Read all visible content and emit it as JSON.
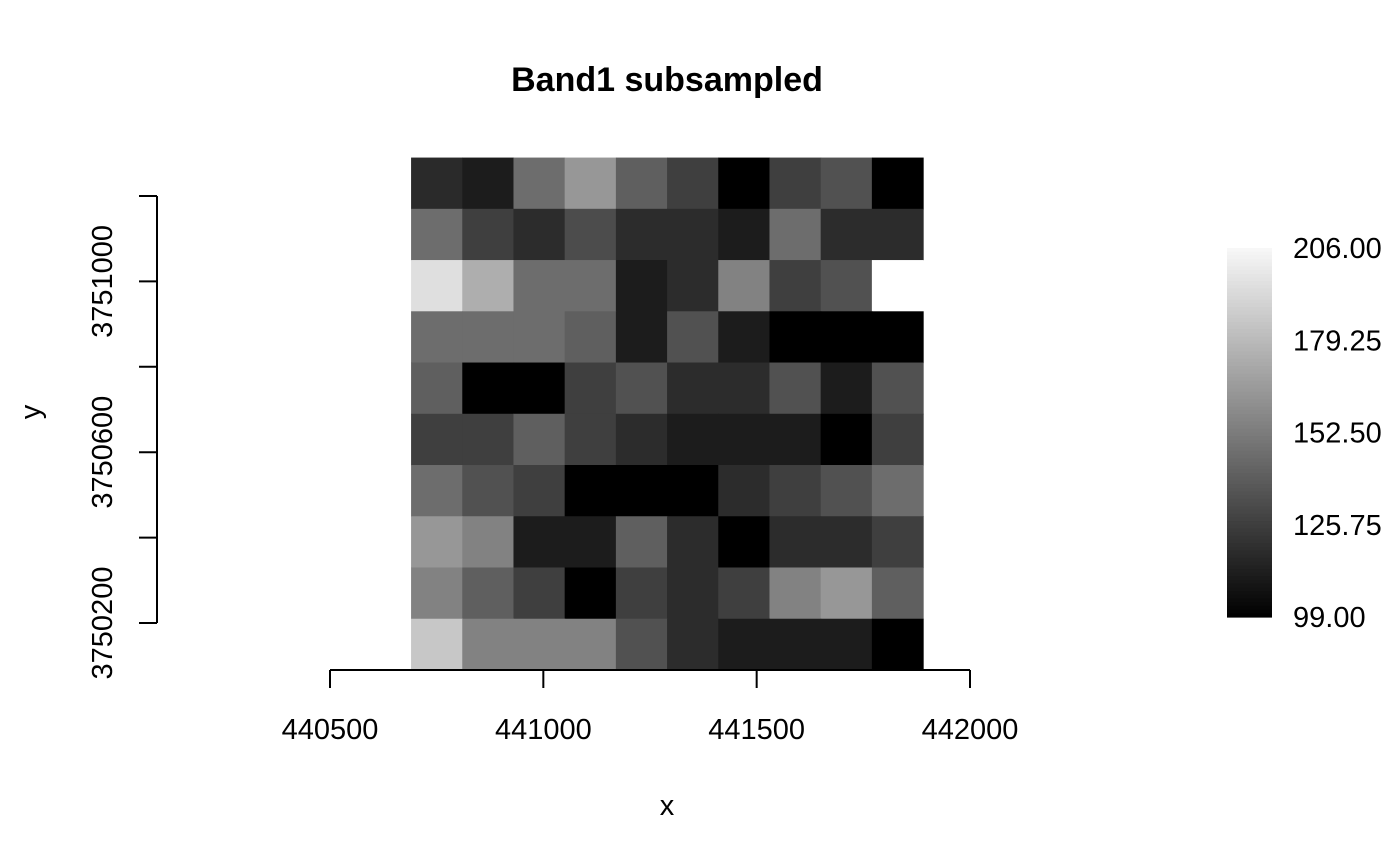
{
  "chart_data": {
    "type": "heatmap",
    "title": "Band1 subsampled",
    "xlabel": "x",
    "ylabel": "y",
    "x_ticks": [
      440500,
      441000,
      441500,
      442000
    ],
    "x_tick_labels": [
      "440500",
      "441000",
      "441500",
      "442000"
    ],
    "y_ticks": [
      3750200,
      3750400,
      3750600,
      3750800,
      3751000,
      3751200
    ],
    "y_tick_labels": [
      "3750200",
      "",
      "3750600",
      "",
      "3751000",
      ""
    ],
    "xlim": [
      440500,
      442000
    ],
    "ylim": [
      3750200,
      3751200
    ],
    "cell_x_edges": [
      440690,
      440810,
      440930,
      441050,
      441170,
      441290,
      441410,
      441530,
      441650,
      441770,
      441890
    ],
    "cell_y_top": 3751290,
    "cell_height": 120,
    "color_scale": "gray",
    "legend": {
      "position": "right",
      "min": 99,
      "max": 206,
      "tick_labels": [
        "206.00",
        "179.25",
        "152.50",
        "125.75",
        "99.00"
      ],
      "tick_values": [
        206,
        179.25,
        152.5,
        125.75,
        99
      ]
    },
    "missing_value_color": "#ffffff",
    "values": [
      [
        117,
        111,
        146,
        164,
        140,
        126,
        99,
        126,
        134,
        99
      ],
      [
        146,
        126,
        118,
        132,
        118,
        118,
        111,
        146,
        118,
        118
      ],
      [
        195,
        174,
        146,
        146,
        111,
        118,
        155,
        126,
        134,
        null
      ],
      [
        146,
        146,
        146,
        140,
        111,
        134,
        111,
        99,
        99,
        99
      ],
      [
        140,
        99,
        99,
        126,
        134,
        118,
        118,
        134,
        111,
        134
      ],
      [
        126,
        126,
        140,
        126,
        118,
        111,
        111,
        111,
        99,
        126
      ],
      [
        146,
        134,
        126,
        99,
        99,
        99,
        118,
        126,
        134,
        146
      ],
      [
        164,
        155,
        111,
        111,
        140,
        118,
        99,
        118,
        118,
        126
      ],
      [
        155,
        140,
        126,
        99,
        126,
        118,
        126,
        155,
        164,
        140
      ],
      [
        185,
        155,
        155,
        155,
        134,
        118,
        111,
        111,
        111,
        99
      ]
    ]
  }
}
